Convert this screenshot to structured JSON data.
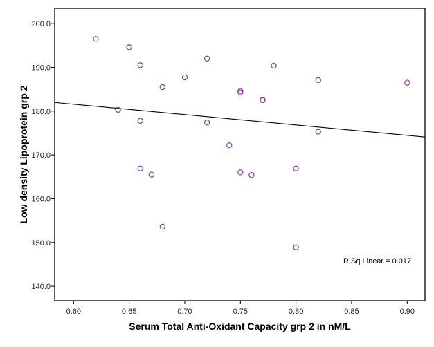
{
  "chart_data": {
    "type": "scatter",
    "title": "",
    "xlabel": "Serum Total Anti-Oxidant Capacity grp 2 in nM/L",
    "ylabel": "Low density Lipoprotein grp 2",
    "xlim": [
      0.583,
      0.916
    ],
    "ylim": [
      136.7,
      203.5
    ],
    "xticks": [
      0.6,
      0.65,
      0.7,
      0.75,
      0.8,
      0.85,
      0.9
    ],
    "xtick_labels": [
      "0.60",
      "0.65",
      "0.70",
      "0.75",
      "0.80",
      "0.85",
      "0.90"
    ],
    "yticks": [
      140,
      150,
      160,
      170,
      180,
      190,
      200
    ],
    "ytick_labels": [
      "140.0",
      "150.0",
      "160.0",
      "170.0",
      "180.0",
      "190.0",
      "200.0"
    ],
    "grid": false,
    "marker_color": "#8B3F9B",
    "line_color": "#000000",
    "points": [
      {
        "x": 0.62,
        "y": 196.5
      },
      {
        "x": 0.65,
        "y": 194.6
      },
      {
        "x": 0.66,
        "y": 190.5
      },
      {
        "x": 0.68,
        "y": 185.5
      },
      {
        "x": 0.7,
        "y": 187.7
      },
      {
        "x": 0.72,
        "y": 192.0
      },
      {
        "x": 0.64,
        "y": 180.3
      },
      {
        "x": 0.66,
        "y": 177.8
      },
      {
        "x": 0.72,
        "y": 177.4
      },
      {
        "x": 0.75,
        "y": 184.6
      },
      {
        "x": 0.75,
        "y": 184.3
      },
      {
        "x": 0.77,
        "y": 182.6
      },
      {
        "x": 0.77,
        "y": 182.5
      },
      {
        "x": 0.78,
        "y": 190.4
      },
      {
        "x": 0.82,
        "y": 187.1
      },
      {
        "x": 0.9,
        "y": 186.5
      },
      {
        "x": 0.82,
        "y": 175.3
      },
      {
        "x": 0.74,
        "y": 172.2
      },
      {
        "x": 0.66,
        "y": 166.9
      },
      {
        "x": 0.67,
        "y": 165.5
      },
      {
        "x": 0.75,
        "y": 166.0
      },
      {
        "x": 0.76,
        "y": 165.4
      },
      {
        "x": 0.8,
        "y": 166.9
      },
      {
        "x": 0.68,
        "y": 153.6
      },
      {
        "x": 0.8,
        "y": 148.9
      }
    ],
    "fit_line": {
      "type": "linear",
      "slope": -23.7,
      "intercept": 195.8,
      "r_squared_label": "R Sq Linear = 0.017"
    }
  }
}
